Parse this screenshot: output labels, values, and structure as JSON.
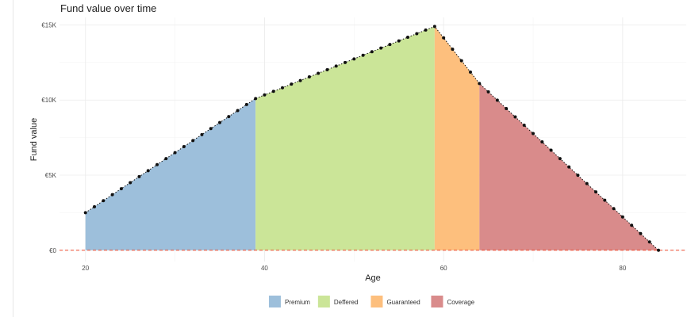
{
  "chart_data": {
    "type": "area",
    "title": "Fund value over time",
    "xlabel": "Age",
    "ylabel": "Fund value",
    "xlim": [
      17.1,
      87.1
    ],
    "ylim": [
      -750,
      15500
    ],
    "x_ticks": [
      20,
      40,
      60,
      80
    ],
    "y_ticks": [
      {
        "value": 0,
        "label": "€0"
      },
      {
        "value": 5000,
        "label": "€5K"
      },
      {
        "value": 10000,
        "label": "€10K"
      },
      {
        "value": 15000,
        "label": "€15K"
      }
    ],
    "grid": true,
    "legend_position": "bottom",
    "reference_line": {
      "value": 0,
      "style": "dashed",
      "color": "#ef4b2e"
    },
    "series": [
      {
        "name": "Premium",
        "color": "#9dbfdb",
        "x_range": [
          20,
          39
        ]
      },
      {
        "name": "Deffered",
        "color": "#cbe598",
        "x_range": [
          39,
          59
        ]
      },
      {
        "name": "Guaranteed",
        "color": "#fdbf7d",
        "x_range": [
          59,
          64
        ]
      },
      {
        "name": "Coverage",
        "color": "#d98b8b",
        "x_range": [
          64,
          84
        ]
      }
    ],
    "points": [
      [
        20,
        2500
      ],
      [
        21,
        2900
      ],
      [
        22,
        3300
      ],
      [
        23,
        3700
      ],
      [
        24,
        4100
      ],
      [
        25,
        4500
      ],
      [
        26,
        4900
      ],
      [
        27,
        5300
      ],
      [
        28,
        5700
      ],
      [
        29,
        6100
      ],
      [
        30,
        6500
      ],
      [
        31,
        6900
      ],
      [
        32,
        7300
      ],
      [
        33,
        7700
      ],
      [
        34,
        8100
      ],
      [
        35,
        8500
      ],
      [
        36,
        8900
      ],
      [
        37,
        9300
      ],
      [
        38,
        9700
      ],
      [
        39,
        10100
      ],
      [
        40,
        10340
      ],
      [
        41,
        10580
      ],
      [
        42,
        10820
      ],
      [
        43,
        11060
      ],
      [
        44,
        11300
      ],
      [
        45,
        11540
      ],
      [
        46,
        11780
      ],
      [
        47,
        12020
      ],
      [
        48,
        12260
      ],
      [
        49,
        12500
      ],
      [
        50,
        12740
      ],
      [
        51,
        12980
      ],
      [
        52,
        13220
      ],
      [
        53,
        13460
      ],
      [
        54,
        13700
      ],
      [
        55,
        13940
      ],
      [
        56,
        14180
      ],
      [
        57,
        14420
      ],
      [
        58,
        14660
      ],
      [
        59,
        14900
      ],
      [
        60,
        14140
      ],
      [
        61,
        13380
      ],
      [
        62,
        12620
      ],
      [
        63,
        11860
      ],
      [
        64,
        11100
      ],
      [
        65,
        10545
      ],
      [
        66,
        9990
      ],
      [
        67,
        9435
      ],
      [
        68,
        8880
      ],
      [
        69,
        8325
      ],
      [
        70,
        7770
      ],
      [
        71,
        7215
      ],
      [
        72,
        6660
      ],
      [
        73,
        6105
      ],
      [
        74,
        5550
      ],
      [
        75,
        4995
      ],
      [
        76,
        4440
      ],
      [
        77,
        3885
      ],
      [
        78,
        3330
      ],
      [
        79,
        2775
      ],
      [
        80,
        2220
      ],
      [
        81,
        1665
      ],
      [
        82,
        1110
      ],
      [
        83,
        555
      ],
      [
        84,
        0
      ]
    ]
  }
}
